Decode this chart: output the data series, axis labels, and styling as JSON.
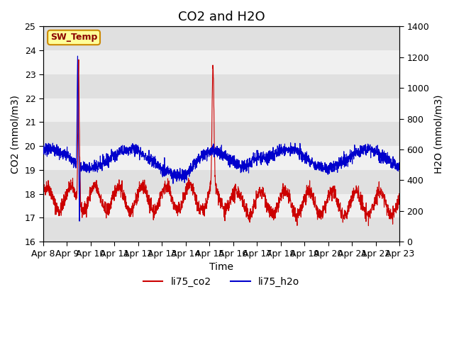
{
  "title": "CO2 and H2O",
  "xlabel": "Time",
  "ylabel_left": "CO2 (mmol/m3)",
  "ylabel_right": "H2O (mmol/m3)",
  "ylim_left": [
    16.0,
    25.0
  ],
  "ylim_right": [
    0,
    1400
  ],
  "yticks_left": [
    16.0,
    17.0,
    18.0,
    19.0,
    20.0,
    21.0,
    22.0,
    23.0,
    24.0,
    25.0
  ],
  "yticks_right": [
    0,
    200,
    400,
    600,
    800,
    1000,
    1200,
    1400
  ],
  "color_co2": "#cc0000",
  "color_h2o": "#0000cc",
  "sw_temp_label": "SW_Temp",
  "sw_temp_facecolor": "#ffff99",
  "sw_temp_edgecolor": "#cc8800",
  "legend_labels": [
    "li75_co2",
    "li75_h2o"
  ],
  "background_color": "#f0f0f0",
  "band_colors": [
    "#e0e0e0",
    "#f0f0f0"
  ],
  "title_fontsize": 13,
  "axis_fontsize": 10,
  "tick_fontsize": 9
}
